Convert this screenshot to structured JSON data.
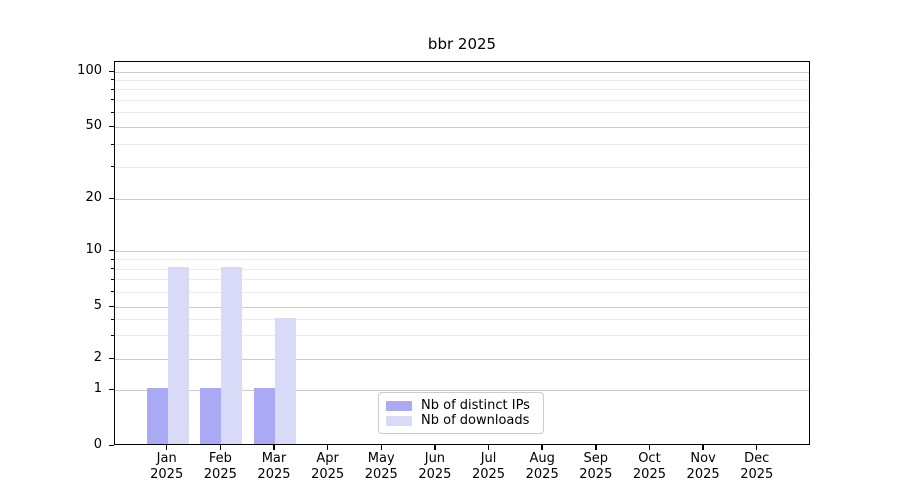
{
  "figure": {
    "background": "#ffffff"
  },
  "chart_data": {
    "type": "bar",
    "title": "bbr 2025",
    "categories": [
      "Jan 2025",
      "Feb 2025",
      "Mar 2025",
      "Apr 2025",
      "May 2025",
      "Jun 2025",
      "Jul 2025",
      "Aug 2025",
      "Sep 2025",
      "Oct 2025",
      "Nov 2025",
      "Dec 2025"
    ],
    "series": [
      {
        "name": "Nb of distinct IPs",
        "color": "#a9a9f4",
        "values": [
          1,
          1,
          1,
          0,
          0,
          0,
          0,
          0,
          0,
          0,
          0,
          0
        ]
      },
      {
        "name": "Nb of downloads",
        "color": "#d9d9f8",
        "values": [
          8,
          8,
          4,
          0,
          0,
          0,
          0,
          0,
          0,
          0,
          0,
          0
        ]
      }
    ],
    "xlabel": "",
    "ylabel": "",
    "yscale": "symlog",
    "ylim": [
      0,
      115
    ],
    "yticks": [
      0,
      1,
      2,
      5,
      10,
      20,
      50,
      100
    ],
    "minor_yticks": [
      3,
      4,
      6,
      7,
      8,
      9,
      30,
      40,
      60,
      70,
      80,
      90
    ],
    "grid": "horizontal",
    "legend_position": "lower-center",
    "colors": {
      "major_grid": "#cbcbcb",
      "minor_grid": "#ebebeb",
      "spine": "#000000",
      "legend_border": "#cccccc"
    }
  }
}
